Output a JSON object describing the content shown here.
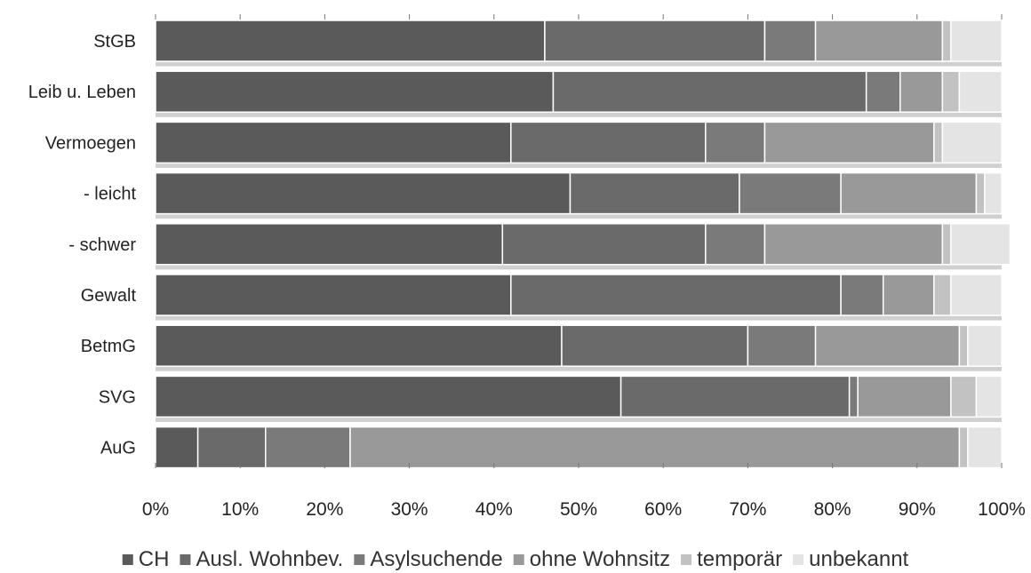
{
  "chart_data": {
    "type": "bar",
    "orientation": "horizontal",
    "stacked": "percent",
    "categories": [
      "StGB",
      "Leib u. Leben",
      "Vermoegen",
      "- leicht",
      "- schwer",
      "Gewalt",
      "BetmG",
      "SVG",
      "AuG"
    ],
    "series": [
      {
        "name": "CH",
        "color": "#5a5a5a",
        "values": [
          46,
          47,
          42,
          49,
          41,
          42,
          48,
          55,
          5
        ]
      },
      {
        "name": "Ausl. Wohnbev.",
        "color": "#6a6a6a",
        "values": [
          26,
          37,
          23,
          20,
          24,
          39,
          22,
          27,
          8
        ]
      },
      {
        "name": "Asylsuchende",
        "color": "#7a7a7a",
        "values": [
          6,
          4,
          7,
          12,
          7,
          5,
          8,
          1,
          10
        ]
      },
      {
        "name": "ohne Wohnsitz",
        "color": "#999999",
        "values": [
          15,
          5,
          20,
          16,
          21,
          6,
          17,
          11,
          72
        ]
      },
      {
        "name": "temporär",
        "color": "#c2c2c2",
        "values": [
          1,
          2,
          1,
          1,
          1,
          2,
          1,
          3,
          1
        ]
      },
      {
        "name": "unbekannt",
        "color": "#e4e4e4",
        "values": [
          6,
          5,
          7,
          2,
          7,
          6,
          4,
          3,
          4
        ]
      }
    ],
    "xlim": [
      0,
      100
    ],
    "x_ticks": [
      "0%",
      "10%",
      "20%",
      "30%",
      "40%",
      "50%",
      "60%",
      "70%",
      "80%",
      "90%",
      "100%"
    ],
    "legend_position": "bottom",
    "grid": false
  }
}
